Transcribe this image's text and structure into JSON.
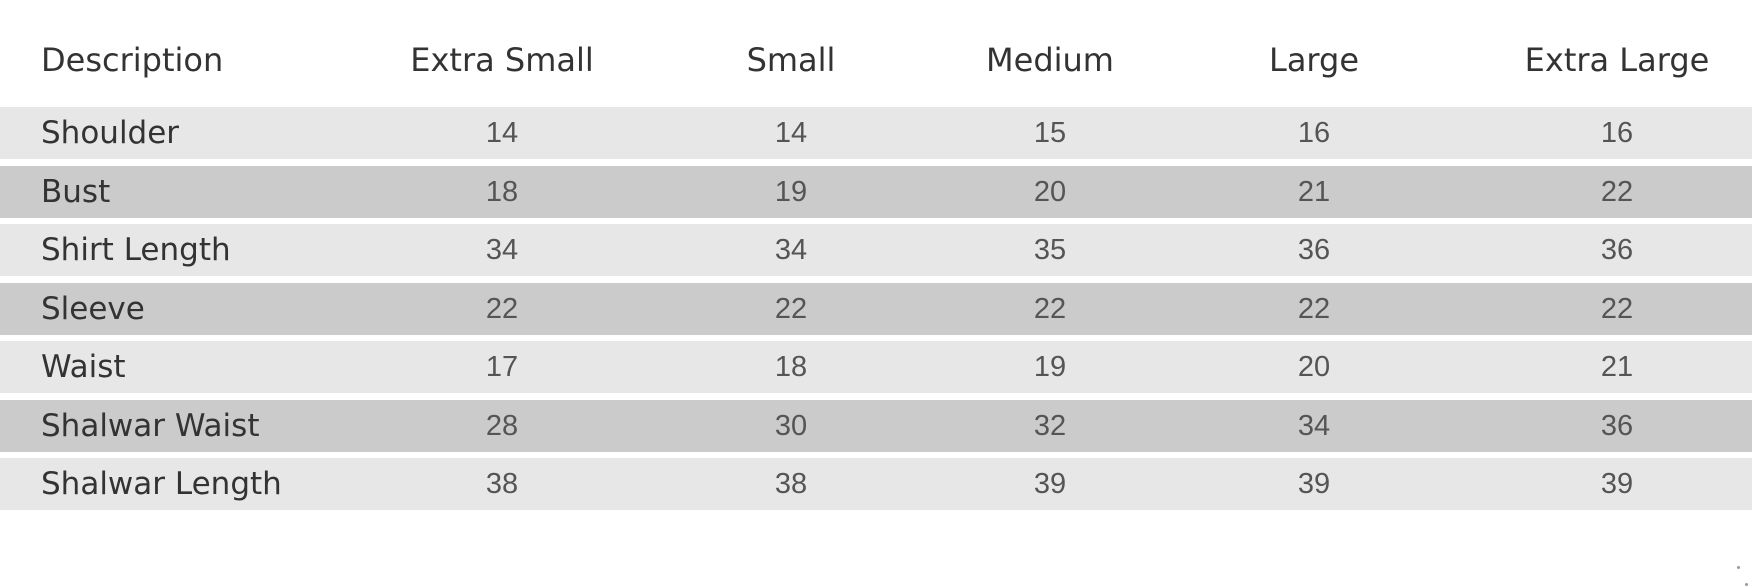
{
  "table": {
    "headers": [
      "Description",
      "Extra Small",
      "Small",
      "Medium",
      "Large",
      "Extra Large"
    ],
    "rows": [
      {
        "label": "Shoulder",
        "values": [
          "14",
          "14",
          "15",
          "16",
          "16"
        ]
      },
      {
        "label": "Bust",
        "values": [
          "18",
          "19",
          "20",
          "21",
          "22"
        ]
      },
      {
        "label": "Shirt Length",
        "values": [
          "34",
          "34",
          "35",
          "36",
          "36"
        ]
      },
      {
        "label": "Sleeve",
        "values": [
          "22",
          "22",
          "22",
          "22",
          "22"
        ]
      },
      {
        "label": "Waist",
        "values": [
          "17",
          "18",
          "19",
          "20",
          "21"
        ]
      },
      {
        "label": "Shalwar Waist",
        "values": [
          "28",
          "30",
          "32",
          "34",
          "36"
        ]
      },
      {
        "label": "Shalwar Length",
        "values": [
          "38",
          "38",
          "39",
          "39",
          "39"
        ]
      }
    ],
    "colors": {
      "row_light": "#e7e7e7",
      "row_dark": "#cbcbcb",
      "text": "#333333"
    }
  }
}
